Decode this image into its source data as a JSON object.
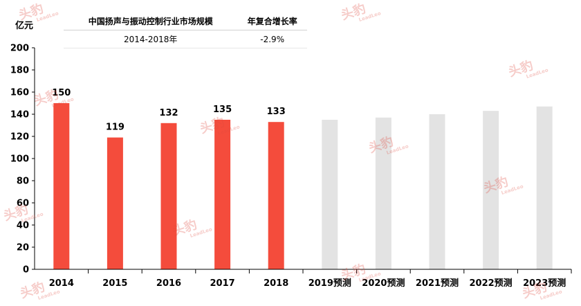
{
  "header": {
    "unit": "亿元",
    "table": {
      "col1_header": "中国扬声与振动控制行业市场规模",
      "col2_header": "年复合增长率",
      "col1_value": "2014-2018年",
      "col2_value": "-2.9%"
    }
  },
  "watermark": {
    "text": "头豹",
    "sub": "LeadLeo"
  },
  "chart_data": {
    "type": "bar",
    "categories": [
      "2014",
      "2015",
      "2016",
      "2017",
      "2018",
      "2019预测",
      "2020预测",
      "2021预测",
      "2022预测",
      "2023预测"
    ],
    "values": [
      150,
      119,
      132,
      135,
      133,
      135,
      137,
      140,
      143,
      147
    ],
    "data_labels": [
      "150",
      "119",
      "132",
      "135",
      "133",
      "",
      "",
      "",
      "",
      ""
    ],
    "ylim": [
      0,
      200
    ],
    "yticks": [
      0,
      20,
      40,
      60,
      80,
      100,
      120,
      140,
      160,
      180,
      200
    ],
    "grid": false,
    "colors": {
      "actual": "#f44c3c",
      "forecast": "#e3e3e3"
    }
  }
}
